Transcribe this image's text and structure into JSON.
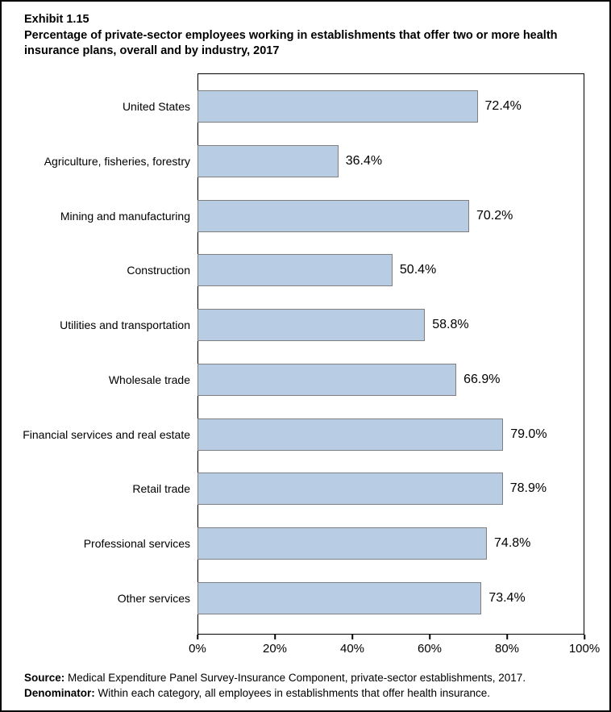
{
  "title": {
    "exhibit": "Exhibit 1.15",
    "text": "Percentage of private-sector employees working in establishments that offer two or more health insurance plans, overall and by industry, 2017"
  },
  "chart_data": {
    "type": "bar",
    "orientation": "horizontal",
    "title": "Percentage of private-sector employees working in establishments that offer two or more health insurance plans, overall and by industry, 2017",
    "categories": [
      "United States",
      "Agriculture, fisheries, forestry",
      "Mining and manufacturing",
      "Construction",
      "Utilities and transportation",
      "Wholesale trade",
      "Financial services and real estate",
      "Retail trade",
      "Professional services",
      "Other services"
    ],
    "values": [
      72.4,
      36.4,
      70.2,
      50.4,
      58.8,
      66.9,
      79.0,
      78.9,
      74.8,
      73.4
    ],
    "value_labels": [
      "72.4%",
      "36.4%",
      "70.2%",
      "50.4%",
      "58.8%",
      "66.9%",
      "79.0%",
      "78.9%",
      "74.8%",
      "73.4%"
    ],
    "xlabel": "",
    "ylabel": "",
    "xlim": [
      0,
      100
    ],
    "x_tick_values": [
      0,
      20,
      40,
      60,
      80,
      100
    ],
    "x_tick_labels": [
      "0%",
      "20%",
      "40%",
      "60%",
      "80%",
      "100%"
    ],
    "grid": false,
    "legend": false,
    "bar_fill_color": "#b8cde3",
    "bar_border_color": "#7f7f7f"
  },
  "footer": {
    "source_label": "Source:",
    "source_text": " Medical Expenditure Panel Survey-Insurance Component, private-sector establishments, 2017.",
    "denominator_label": "Denominator:",
    "denominator_text": " Within each category, all employees in establishments that offer health insurance."
  }
}
